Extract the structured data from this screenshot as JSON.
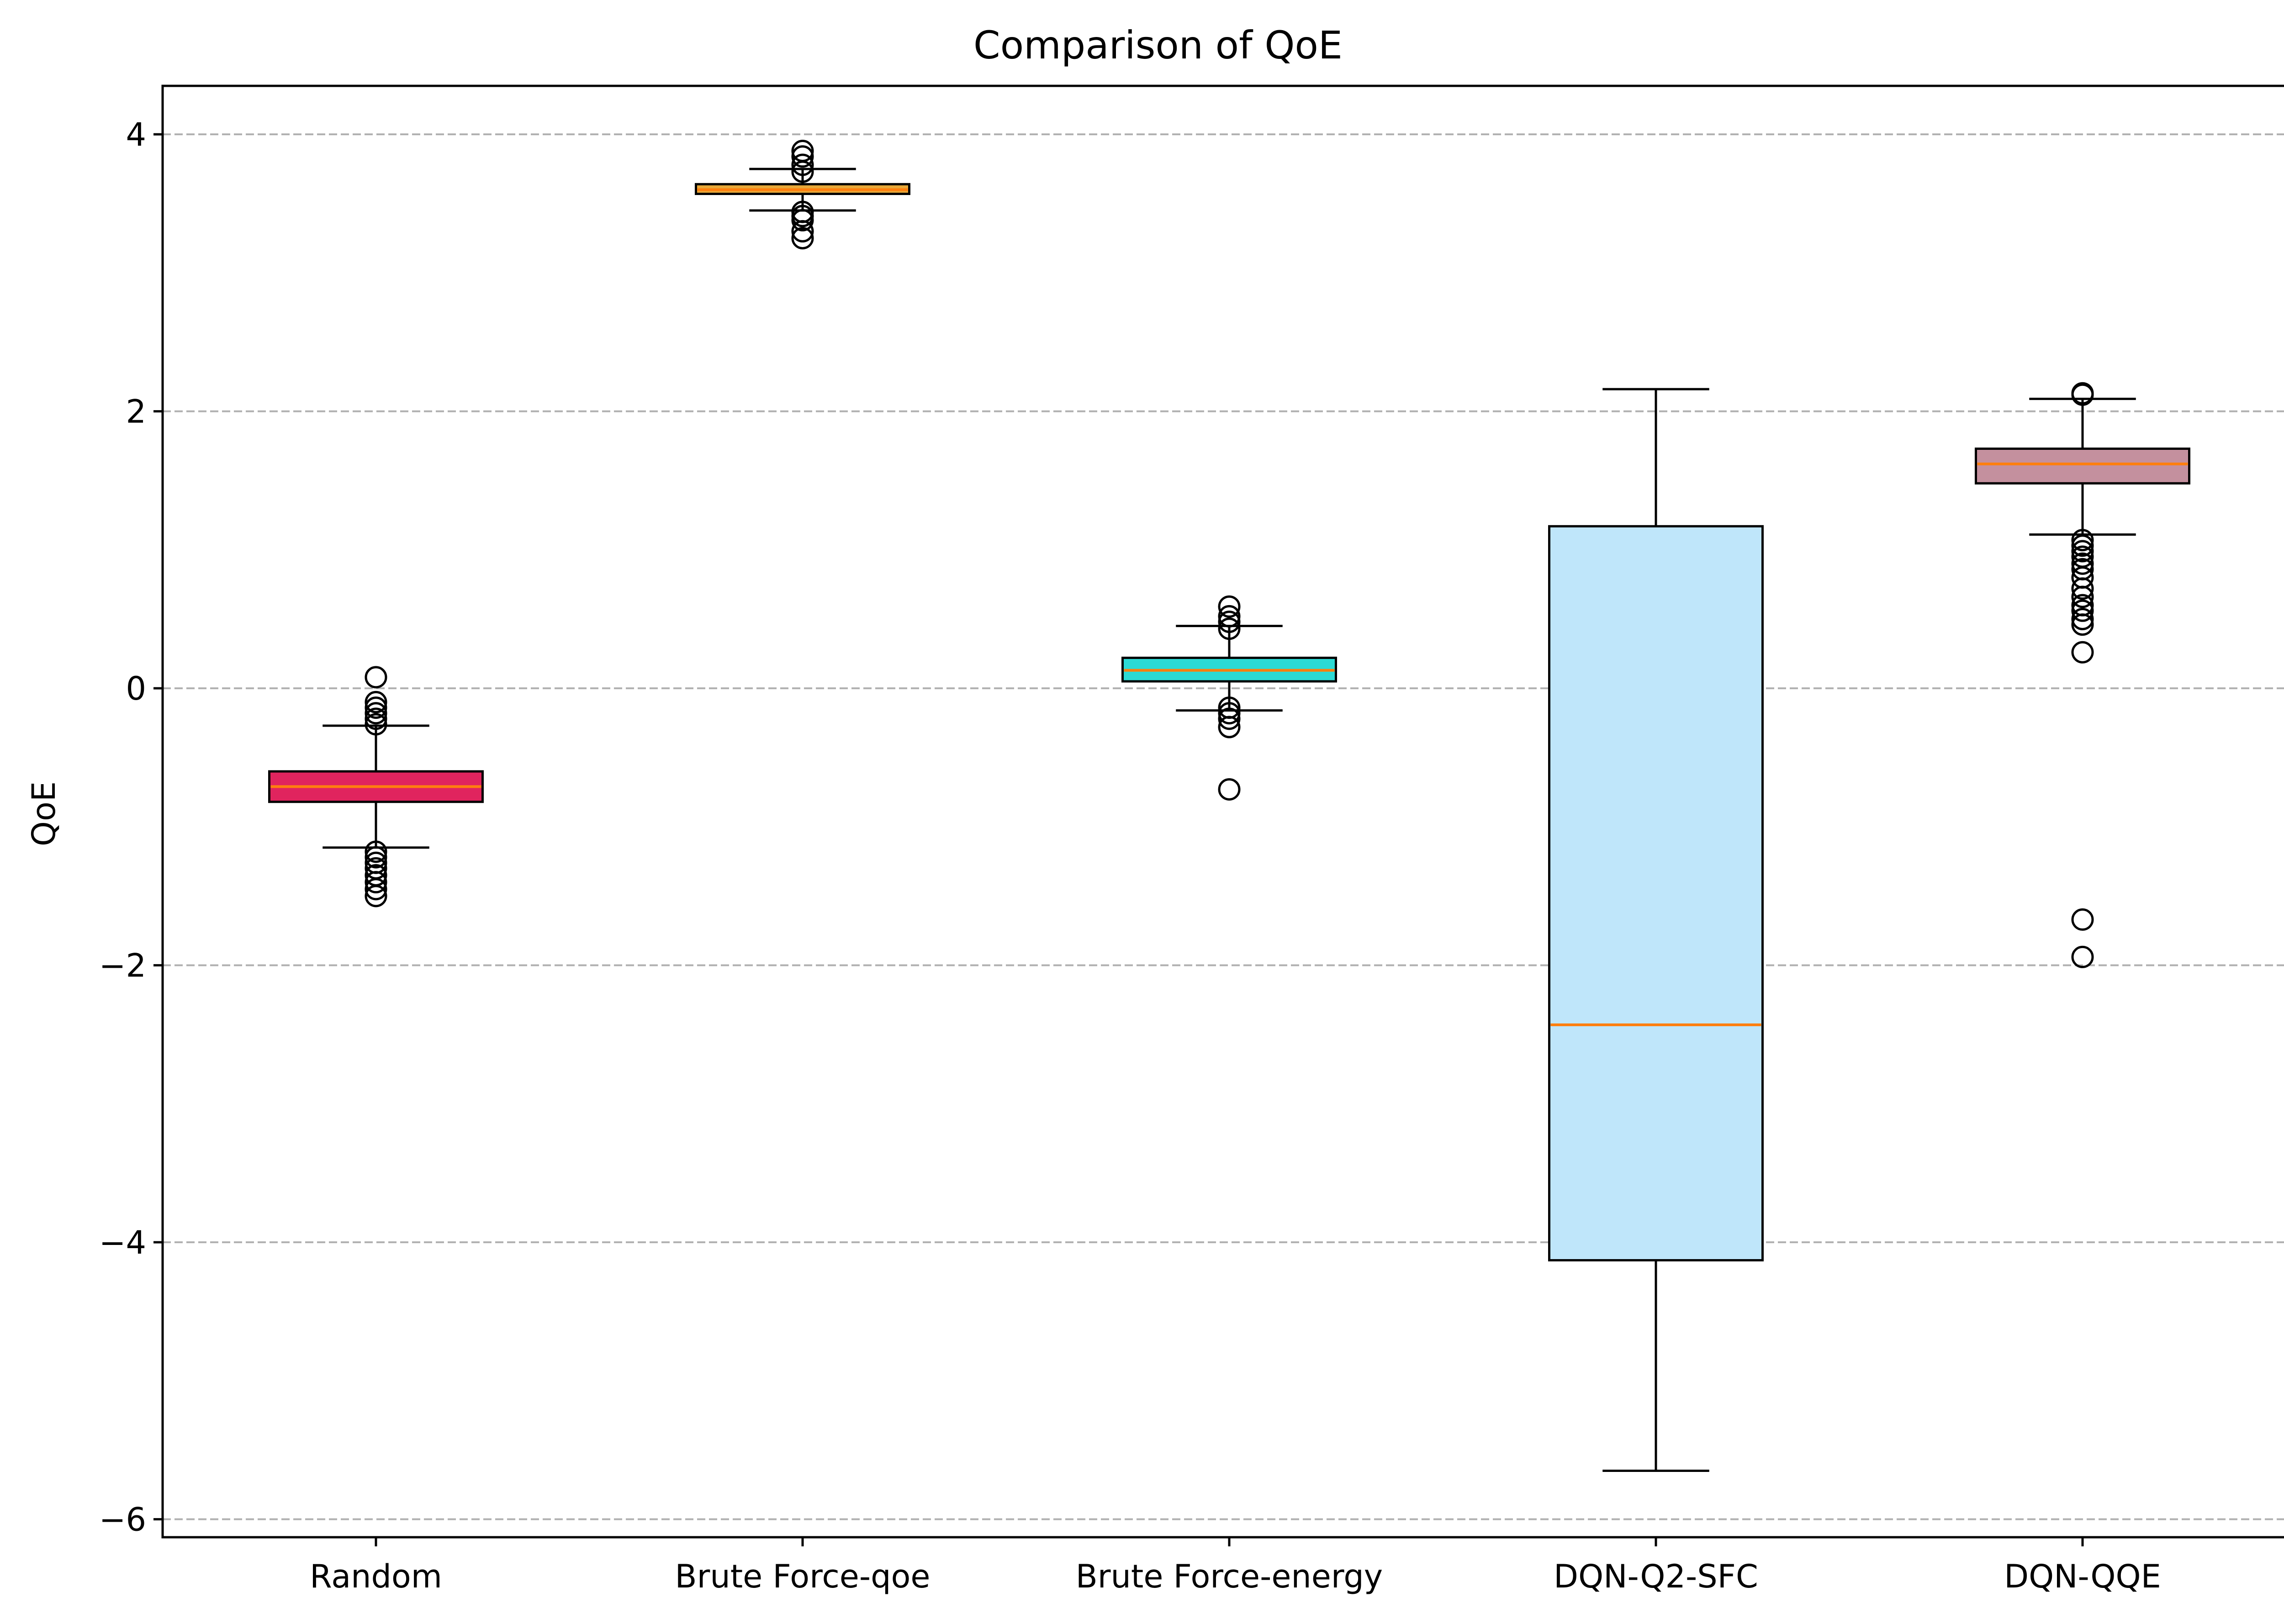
{
  "chart_data": {
    "type": "box",
    "title": "Comparison of QoE",
    "xlabel": "",
    "ylabel": "QoE",
    "ylim": [
      -6.13,
      4.35
    ],
    "yticks": [
      4,
      2,
      0,
      -2,
      -4,
      -6
    ],
    "ytick_labels": [
      "4",
      "2",
      "0",
      "−2",
      "−4",
      "−6"
    ],
    "grid": "y-dashed",
    "colors": {
      "grid": "#b0b0b0",
      "median": "#ff7f0e",
      "outline": "#000000"
    },
    "categories": [
      "Random",
      "Brute Force-qoe",
      "Brute Force-energy",
      "DQN-Q2-SFC",
      "DQN-QQE"
    ],
    "boxes": [
      {
        "label": "Random",
        "color": "#e0245e",
        "whisker_low": -1.15,
        "q1": -0.82,
        "median": -0.71,
        "q3": -0.6,
        "whisker_high": -0.27,
        "outliers": [
          0.08,
          -0.1,
          -0.14,
          -0.18,
          -0.22,
          -0.26,
          -1.18,
          -1.22,
          -1.26,
          -1.3,
          -1.35,
          -1.4,
          -1.45,
          -1.5
        ]
      },
      {
        "label": "Brute Force-qoe",
        "color": "#e8a838",
        "whisker_low": 3.45,
        "q1": 3.57,
        "median": 3.6,
        "q3": 3.64,
        "whisker_high": 3.75,
        "outliers": [
          3.88,
          3.84,
          3.78,
          3.73,
          3.44,
          3.41,
          3.38,
          3.3,
          3.25
        ]
      },
      {
        "label": "Brute Force-energy",
        "color": "#2cdad4",
        "whisker_low": -0.16,
        "q1": 0.05,
        "median": 0.13,
        "q3": 0.22,
        "whisker_high": 0.45,
        "outliers": [
          0.59,
          0.52,
          0.48,
          0.43,
          -0.14,
          -0.18,
          -0.22,
          -0.28,
          -0.73
        ]
      },
      {
        "label": "DQN-Q2-SFC",
        "color": "#bfe6fa",
        "whisker_low": -5.65,
        "q1": -4.13,
        "median": -2.43,
        "q3": 1.17,
        "whisker_high": 2.16,
        "outliers": []
      },
      {
        "label": "DQN-QQE",
        "color": "#c4909e",
        "whisker_low": 1.11,
        "q1": 1.48,
        "median": 1.62,
        "q3": 1.73,
        "whisker_high": 2.09,
        "outliers": [
          2.12,
          2.13,
          1.07,
          1.03,
          0.99,
          0.95,
          0.9,
          0.86,
          0.8,
          0.72,
          0.66,
          0.6,
          0.56,
          0.5,
          0.46,
          0.26,
          -1.67,
          -1.94
        ]
      }
    ]
  }
}
